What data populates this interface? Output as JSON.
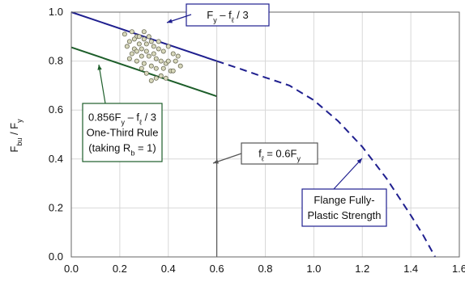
{
  "chart_data": {
    "type": "line",
    "xlim": [
      0.0,
      1.6
    ],
    "ylim": [
      0.0,
      1.0
    ],
    "x_ticks": [
      "0.0",
      "0.2",
      "0.4",
      "0.6",
      "0.8",
      "1.0",
      "1.2",
      "1.4",
      "1.6"
    ],
    "y_ticks": [
      "0.0",
      "0.2",
      "0.4",
      "0.6",
      "0.8",
      "1.0"
    ],
    "grid": true,
    "ylabel": {
      "main": "F",
      "sub": "bu",
      "mid": " / F",
      "sub2": "y"
    },
    "series": [
      {
        "style": "solid",
        "color": "#1f1f8f",
        "points": [
          [
            0.0,
            1.0
          ],
          [
            0.6,
            0.8
          ]
        ]
      },
      {
        "style": "dashed",
        "color": "#1f1f8f",
        "points": [
          [
            0.6,
            0.8
          ],
          [
            0.7,
            0.767
          ],
          [
            0.8,
            0.733
          ],
          [
            0.9,
            0.7
          ],
          [
            1.0,
            0.64
          ],
          [
            1.1,
            0.555
          ],
          [
            1.2,
            0.45
          ],
          [
            1.3,
            0.32
          ],
          [
            1.4,
            0.17
          ],
          [
            1.45,
            0.09
          ],
          [
            1.5,
            0.0
          ]
        ]
      },
      {
        "style": "solid",
        "color": "#1d5e2a",
        "points": [
          [
            0.0,
            0.856
          ],
          [
            0.6,
            0.656
          ]
        ]
      },
      {
        "style": "solid",
        "color": "#555555",
        "points": [
          [
            0.6,
            0.0
          ],
          [
            0.6,
            0.8
          ]
        ]
      }
    ],
    "scatter": [
      [
        0.22,
        0.91
      ],
      [
        0.24,
        0.88
      ],
      [
        0.25,
        0.92
      ],
      [
        0.26,
        0.85
      ],
      [
        0.27,
        0.9
      ],
      [
        0.28,
        0.87
      ],
      [
        0.29,
        0.82
      ],
      [
        0.3,
        0.89
      ],
      [
        0.31,
        0.84
      ],
      [
        0.32,
        0.9
      ],
      [
        0.33,
        0.78
      ],
      [
        0.34,
        0.86
      ],
      [
        0.35,
        0.81
      ],
      [
        0.36,
        0.88
      ],
      [
        0.37,
        0.74
      ],
      [
        0.38,
        0.84
      ],
      [
        0.39,
        0.79
      ],
      [
        0.4,
        0.86
      ],
      [
        0.41,
        0.76
      ],
      [
        0.42,
        0.83
      ],
      [
        0.43,
        0.8
      ],
      [
        0.45,
        0.78
      ],
      [
        0.23,
        0.86
      ],
      [
        0.25,
        0.83
      ],
      [
        0.27,
        0.8
      ],
      [
        0.29,
        0.77
      ],
      [
        0.31,
        0.75
      ],
      [
        0.33,
        0.72
      ],
      [
        0.35,
        0.77
      ],
      [
        0.37,
        0.8
      ],
      [
        0.39,
        0.73
      ],
      [
        0.26,
        0.89
      ],
      [
        0.3,
        0.79
      ],
      [
        0.34,
        0.83
      ],
      [
        0.38,
        0.77
      ],
      [
        0.32,
        0.82
      ],
      [
        0.28,
        0.9
      ],
      [
        0.36,
        0.85
      ],
      [
        0.4,
        0.8
      ],
      [
        0.24,
        0.81
      ],
      [
        0.42,
        0.76
      ],
      [
        0.44,
        0.82
      ],
      [
        0.3,
        0.92
      ],
      [
        0.27,
        0.84
      ],
      [
        0.35,
        0.73
      ],
      [
        0.31,
        0.87
      ],
      [
        0.29,
        0.85
      ],
      [
        0.33,
        0.88
      ]
    ],
    "annotations": [
      {
        "id": "fy-box",
        "color": "#1f1f8f",
        "lines": [
          [
            {
              "t": "F"
            },
            {
              "t": "y",
              "s": 1
            },
            {
              "t": " – f"
            },
            {
              "t": "ℓ",
              "s": 1
            },
            {
              "t": " / 3"
            }
          ]
        ]
      },
      {
        "id": "green-box",
        "color": "#1d5e2a",
        "lines": [
          [
            {
              "t": "0.856F"
            },
            {
              "t": "y",
              "s": 1
            },
            {
              "t": " – f"
            },
            {
              "t": "ℓ",
              "s": 1
            },
            {
              "t": " / 3"
            }
          ],
          [
            {
              "t": "One-Third Rule"
            }
          ],
          [
            {
              "t": "(taking R"
            },
            {
              "t": "b",
              "s": 1
            },
            {
              "t": " = 1)"
            }
          ]
        ]
      },
      {
        "id": "fl-box",
        "color": "#555555",
        "lines": [
          [
            {
              "t": "f"
            },
            {
              "t": "ℓ",
              "s": 1
            },
            {
              "t": " = 0.6F"
            },
            {
              "t": "y",
              "s": 1
            }
          ]
        ]
      },
      {
        "id": "plastic-box",
        "color": "#1f1f8f",
        "lines": [
          [
            {
              "t": "Flange Fully-"
            }
          ],
          [
            {
              "t": "Plastic Strength"
            }
          ]
        ]
      }
    ]
  }
}
